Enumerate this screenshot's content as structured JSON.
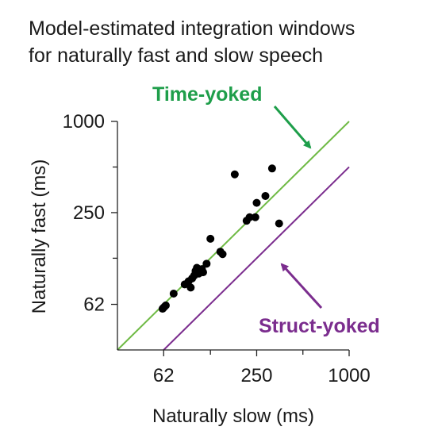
{
  "chart_data": {
    "type": "scatter",
    "title": "Model-estimated integration windows",
    "subtitle": "for naturally fast and slow speech",
    "xlabel": "Naturally slow (ms)",
    "ylabel": "Naturally fast (ms)",
    "x_scale": "log",
    "y_scale": "log",
    "xlim": [
      31,
      1000
    ],
    "ylim": [
      31,
      1000
    ],
    "x_ticks": [
      62,
      250,
      1000
    ],
    "y_ticks": [
      62,
      250,
      1000
    ],
    "x_tick_labels": [
      "62",
      "250",
      "1000"
    ],
    "y_tick_labels": [
      "62",
      "250",
      "1000"
    ],
    "x_minor_ticks": [
      125,
      500
    ],
    "y_minor_ticks": [
      125,
      500
    ],
    "grid": false,
    "points": [
      {
        "x": 61,
        "y": 58
      },
      {
        "x": 62,
        "y": 59
      },
      {
        "x": 63,
        "y": 60
      },
      {
        "x": 64,
        "y": 61
      },
      {
        "x": 72,
        "y": 73
      },
      {
        "x": 85,
        "y": 84
      },
      {
        "x": 90,
        "y": 88
      },
      {
        "x": 95,
        "y": 92
      },
      {
        "x": 93,
        "y": 80
      },
      {
        "x": 98,
        "y": 96
      },
      {
        "x": 100,
        "y": 103
      },
      {
        "x": 102,
        "y": 108
      },
      {
        "x": 105,
        "y": 99
      },
      {
        "x": 110,
        "y": 106
      },
      {
        "x": 112,
        "y": 101
      },
      {
        "x": 118,
        "y": 115
      },
      {
        "x": 125,
        "y": 168
      },
      {
        "x": 145,
        "y": 138
      },
      {
        "x": 150,
        "y": 133
      },
      {
        "x": 180,
        "y": 447
      },
      {
        "x": 215,
        "y": 221
      },
      {
        "x": 225,
        "y": 233
      },
      {
        "x": 245,
        "y": 233
      },
      {
        "x": 250,
        "y": 290
      },
      {
        "x": 285,
        "y": 322
      },
      {
        "x": 315,
        "y": 489
      },
      {
        "x": 350,
        "y": 212
      }
    ],
    "lines": [
      {
        "name": "Time-yoked",
        "color": "#6fba45",
        "relation": "y = x"
      },
      {
        "name": "Struct-yoked",
        "color": "#7b2d8e",
        "relation": "y = x / 2"
      }
    ],
    "annotations": [
      {
        "text": "Time-yoked",
        "color": "#1e9e4a"
      },
      {
        "text": "Struct-yoked",
        "color": "#7b2d8e"
      }
    ]
  }
}
